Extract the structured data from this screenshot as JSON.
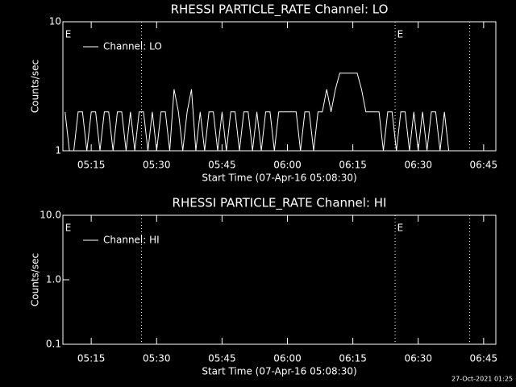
{
  "chart_data": [
    {
      "type": "line",
      "title": "RHESSI PARTICLE_RATE Channel: LO",
      "x_label": "Start Time (07-Apr-16 05:08:30)",
      "y_label": "Counts/sec",
      "log_y": true,
      "ylim": [
        1,
        10
      ],
      "yticks": [
        1,
        10
      ],
      "xlim": [
        "05:08:30",
        "06:47:48"
      ],
      "xticks": [
        "05:15",
        "05:30",
        "05:45",
        "06:00",
        "06:15",
        "06:30",
        "06:45"
      ],
      "vlines": [
        "05:26:32",
        "06:24:42",
        "06:41:48"
      ],
      "annotations": [
        {
          "text": "E",
          "x": "05:09:00"
        },
        {
          "text": "E",
          "x": "06:25:10"
        }
      ],
      "x": [
        "05:09",
        "05:10",
        "05:11",
        "05:12",
        "05:13",
        "05:14",
        "05:15",
        "05:16",
        "05:17",
        "05:18",
        "05:19",
        "05:20",
        "05:21",
        "05:22",
        "05:23",
        "05:24",
        "05:25",
        "05:26",
        "05:27",
        "05:28",
        "05:29",
        "05:30",
        "05:31",
        "05:32",
        "05:33",
        "05:34",
        "05:35",
        "05:36",
        "05:37",
        "05:38",
        "05:39",
        "05:40",
        "05:41",
        "05:42",
        "05:43",
        "05:44",
        "05:45",
        "05:46",
        "05:47",
        "05:48",
        "05:49",
        "05:50",
        "05:51",
        "05:52",
        "05:53",
        "05:54",
        "05:55",
        "05:56",
        "05:57",
        "05:58",
        "05:59",
        "06:00",
        "06:01",
        "06:02",
        "06:03",
        "06:04",
        "06:05",
        "06:06",
        "06:07",
        "06:08",
        "06:09",
        "06:10",
        "06:11",
        "06:12",
        "06:13",
        "06:14",
        "06:15",
        "06:16",
        "06:17",
        "06:18",
        "06:19",
        "06:20",
        "06:21",
        "06:22",
        "06:23",
        "06:24",
        "06:25",
        "06:26",
        "06:27",
        "06:28",
        "06:29",
        "06:30",
        "06:31",
        "06:32",
        "06:33",
        "06:34",
        "06:35",
        "06:36",
        "06:37",
        "06:38"
      ],
      "series": [
        {
          "name": "Channel: LO",
          "color": "#ffffff",
          "values": [
            2,
            1,
            1,
            2,
            2,
            1,
            2,
            2,
            1,
            2,
            2,
            1,
            2,
            2,
            1,
            2,
            1,
            2,
            2,
            1,
            2,
            1,
            2,
            2,
            1,
            3,
            2,
            1,
            2,
            3,
            1,
            2,
            1,
            2,
            2,
            1,
            2,
            1,
            2,
            2,
            1,
            2,
            2,
            1,
            2,
            1,
            2,
            2,
            1,
            2,
            2,
            2,
            2,
            2,
            1,
            2,
            2,
            1,
            2,
            2,
            3,
            2,
            3,
            4,
            4,
            4,
            4,
            4,
            3,
            2,
            2,
            2,
            2,
            1,
            2,
            2,
            1,
            2,
            2,
            1,
            2,
            1,
            2,
            1,
            2,
            2,
            1,
            2,
            1,
            1
          ]
        }
      ]
    },
    {
      "type": "line",
      "title": "RHESSI PARTICLE_RATE Channel: HI",
      "x_label": "Start Time (07-Apr-16 05:08:30)",
      "y_label": "Counts/sec",
      "log_y": true,
      "ylim": [
        0.1,
        10
      ],
      "yticks": [
        {
          "value": 0.1,
          "label": "0.1"
        },
        {
          "value": 1,
          "label": "1.0"
        },
        {
          "value": 10,
          "label": "10.0"
        }
      ],
      "xlim": [
        "05:08:30",
        "06:47:48"
      ],
      "xticks": [
        "05:15",
        "05:30",
        "05:45",
        "06:00",
        "06:15",
        "06:30",
        "06:45"
      ],
      "vlines": [
        "05:26:32",
        "06:24:42",
        "06:41:48"
      ],
      "annotations": [
        {
          "text": "E",
          "x": "05:09:00"
        },
        {
          "text": "E",
          "x": "06:25:10"
        }
      ],
      "x": [],
      "series": [
        {
          "name": "Channel: HI",
          "color": "#ffffff",
          "values": []
        }
      ]
    }
  ],
  "footer": "27-Oct-2021 01:25"
}
